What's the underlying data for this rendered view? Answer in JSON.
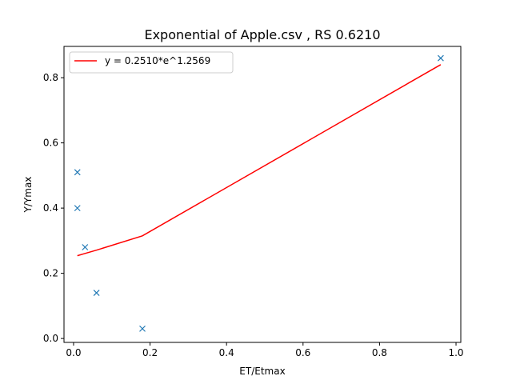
{
  "chart_data": {
    "type": "scatter",
    "title": "Exponential of Apple.csv , RS 0.6210",
    "xlabel": "ET/Etmax",
    "ylabel": "Y/Ymax",
    "xlim": [
      -0.025,
      1.0125
    ],
    "ylim": [
      -0.012,
      0.896
    ],
    "grid": false,
    "legend_position": "top-left",
    "x_ticks": [
      0.0,
      0.2,
      0.4,
      0.6,
      0.8,
      1.0
    ],
    "x_tick_labels": [
      "0.0",
      "0.2",
      "0.4",
      "0.6",
      "0.8",
      "1.0"
    ],
    "y_ticks": [
      0.0,
      0.2,
      0.4,
      0.6,
      0.8
    ],
    "y_tick_labels": [
      "0.0",
      "0.2",
      "0.4",
      "0.6",
      "0.8"
    ],
    "series": [
      {
        "kind": "scatter",
        "marker": "x",
        "color": "#1f77b4",
        "points": [
          {
            "x": 0.01,
            "y": 0.51
          },
          {
            "x": 0.01,
            "y": 0.4
          },
          {
            "x": 0.03,
            "y": 0.28
          },
          {
            "x": 0.06,
            "y": 0.14
          },
          {
            "x": 0.18,
            "y": 0.03
          },
          {
            "x": 0.96,
            "y": 0.86
          }
        ]
      },
      {
        "kind": "line",
        "name": "y = 0.2510*e^1.2569",
        "color": "#ff0000",
        "points": [
          {
            "x": 0.01,
            "y": 0.254
          },
          {
            "x": 0.01,
            "y": 0.254
          },
          {
            "x": 0.03,
            "y": 0.261
          },
          {
            "x": 0.06,
            "y": 0.271
          },
          {
            "x": 0.18,
            "y": 0.315
          },
          {
            "x": 0.96,
            "y": 0.84
          }
        ]
      }
    ]
  }
}
